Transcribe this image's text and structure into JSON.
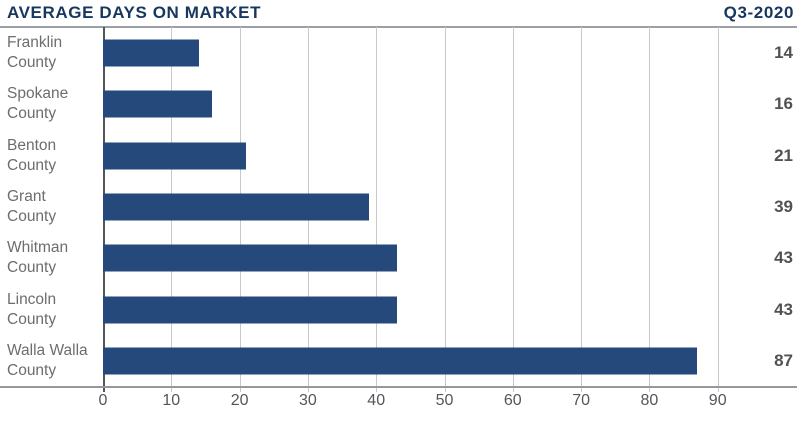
{
  "header": {
    "title": "AVERAGE DAYS ON MARKET",
    "period": "Q3-2020"
  },
  "colors": {
    "background": "#FFFFFF",
    "title": "#17375F",
    "bar": "#25497B",
    "category_label": "#6C6D70",
    "value_label": "#515256",
    "gridline": "#C7C8CA",
    "axis_line": "#97989B",
    "zero_axis": "#54555A",
    "tick_label": "#55565A"
  },
  "chart_data": {
    "type": "bar",
    "orientation": "horizontal",
    "title": "AVERAGE DAYS ON MARKET",
    "subtitle": "Q3-2020",
    "categories": [
      "Franklin County",
      "Spokane County",
      "Benton County",
      "Grant County",
      "Whitman County",
      "Lincoln County",
      "Walla Walla County"
    ],
    "category_lines": [
      [
        "Franklin",
        "County"
      ],
      [
        "Spokane",
        "County"
      ],
      [
        "Benton",
        "County"
      ],
      [
        "Grant",
        "County"
      ],
      [
        "Whitman",
        "County"
      ],
      [
        "Lincoln",
        "County"
      ],
      [
        "Walla Walla",
        "County"
      ]
    ],
    "values": [
      14,
      16,
      21,
      39,
      43,
      43,
      87
    ],
    "value_labels": [
      "14",
      "16",
      "21",
      "39",
      "43",
      "43",
      "87"
    ],
    "xlabel": "",
    "ylabel": "",
    "xlim": [
      0,
      100
    ],
    "xticks": [
      0,
      10,
      20,
      30,
      40,
      50,
      60,
      70,
      80,
      90
    ],
    "grid": "vertical",
    "legend": "none",
    "value_labels_position": "right-margin"
  }
}
